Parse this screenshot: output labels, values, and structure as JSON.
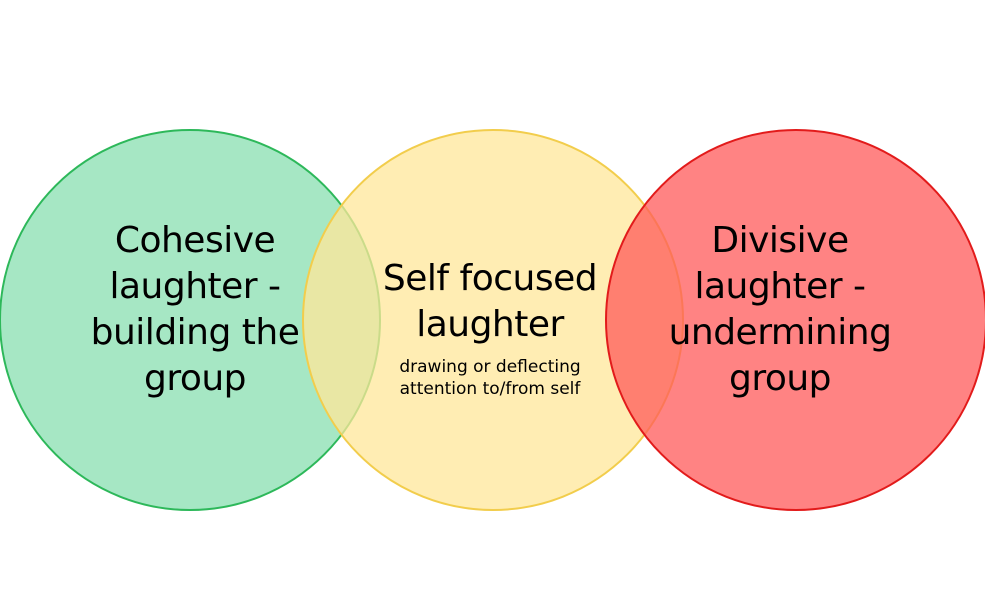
{
  "diagram": {
    "circles": [
      {
        "id": "cohesive",
        "lines": [
          "Cohesive",
          "laughter -",
          "building the",
          "group"
        ],
        "fill": "#88dfb0",
        "stroke": "#2db85a"
      },
      {
        "id": "self-focused",
        "lines": [
          "Self focused",
          "laughter"
        ],
        "sub_lines": [
          "drawing or deflecting",
          "attention to/from self"
        ],
        "fill": "#ffe79a",
        "stroke": "#f2cd4c"
      },
      {
        "id": "divisive",
        "lines": [
          "Divisive",
          "laughter -",
          "undermining",
          "group"
        ],
        "fill": "#ff5a5a",
        "stroke": "#e21b1b"
      }
    ]
  }
}
